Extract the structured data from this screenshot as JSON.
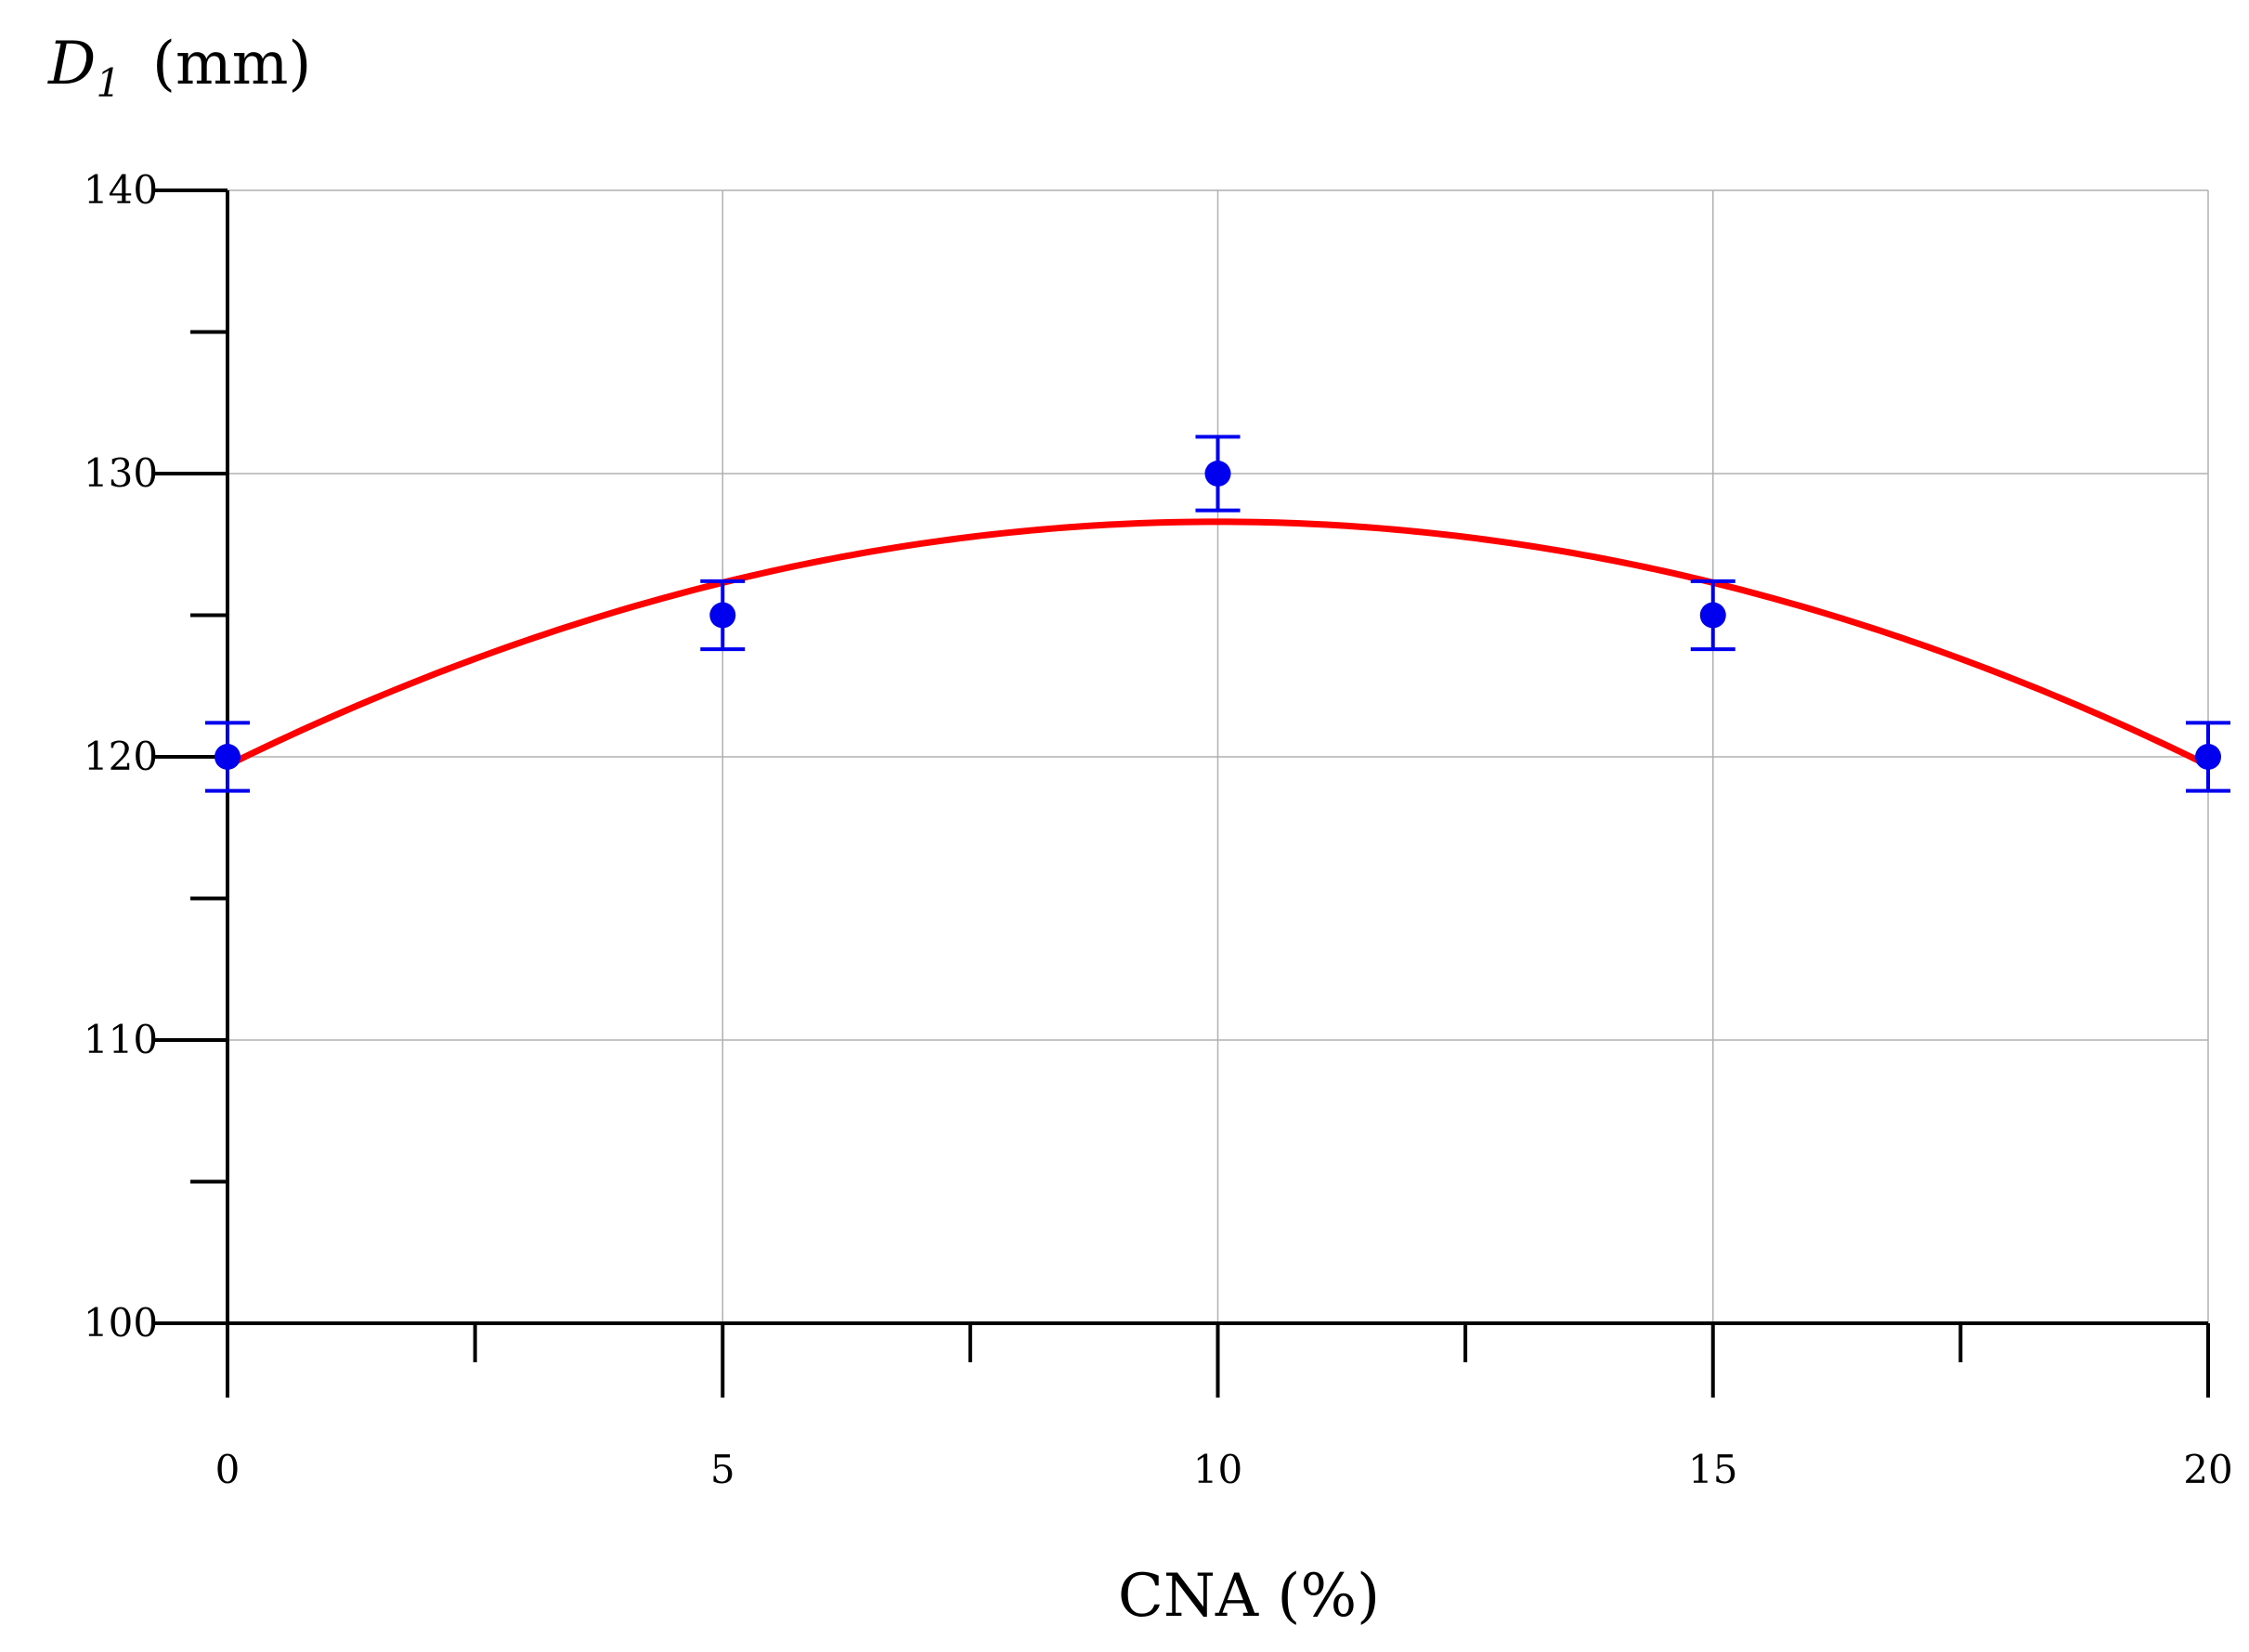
{
  "chart_data": {
    "type": "scatter",
    "ylabel_main": "D",
    "ylabel_sub": "1",
    "ylabel_unit": "(mm)",
    "xlabel": "CNA (%)",
    "xlim": [
      0,
      20
    ],
    "ylim": [
      100,
      140
    ],
    "x_ticks": [
      0,
      5,
      10,
      15,
      20
    ],
    "y_ticks": [
      100,
      110,
      120,
      130,
      140
    ],
    "x_minor_ticks": [
      2.5,
      7.5,
      12.5,
      17.5
    ],
    "y_minor_ticks": [
      105,
      115,
      125,
      135
    ],
    "grid": true,
    "points": [
      {
        "x": 0,
        "y": 120,
        "err": 1.2
      },
      {
        "x": 5,
        "y": 125,
        "err": 1.2
      },
      {
        "x": 10,
        "y": 130,
        "err": 1.3
      },
      {
        "x": 15,
        "y": 125,
        "err": 1.2
      },
      {
        "x": 20,
        "y": 120,
        "err": 1.2
      }
    ],
    "fit": {
      "type": "quadratic",
      "x0": 10,
      "peak": 128.3,
      "y_at_0": 119.7
    },
    "colors": {
      "points": "#0000ee",
      "fit": "#ff0000",
      "grid": "#b0b0b0",
      "axis": "#000000"
    }
  }
}
